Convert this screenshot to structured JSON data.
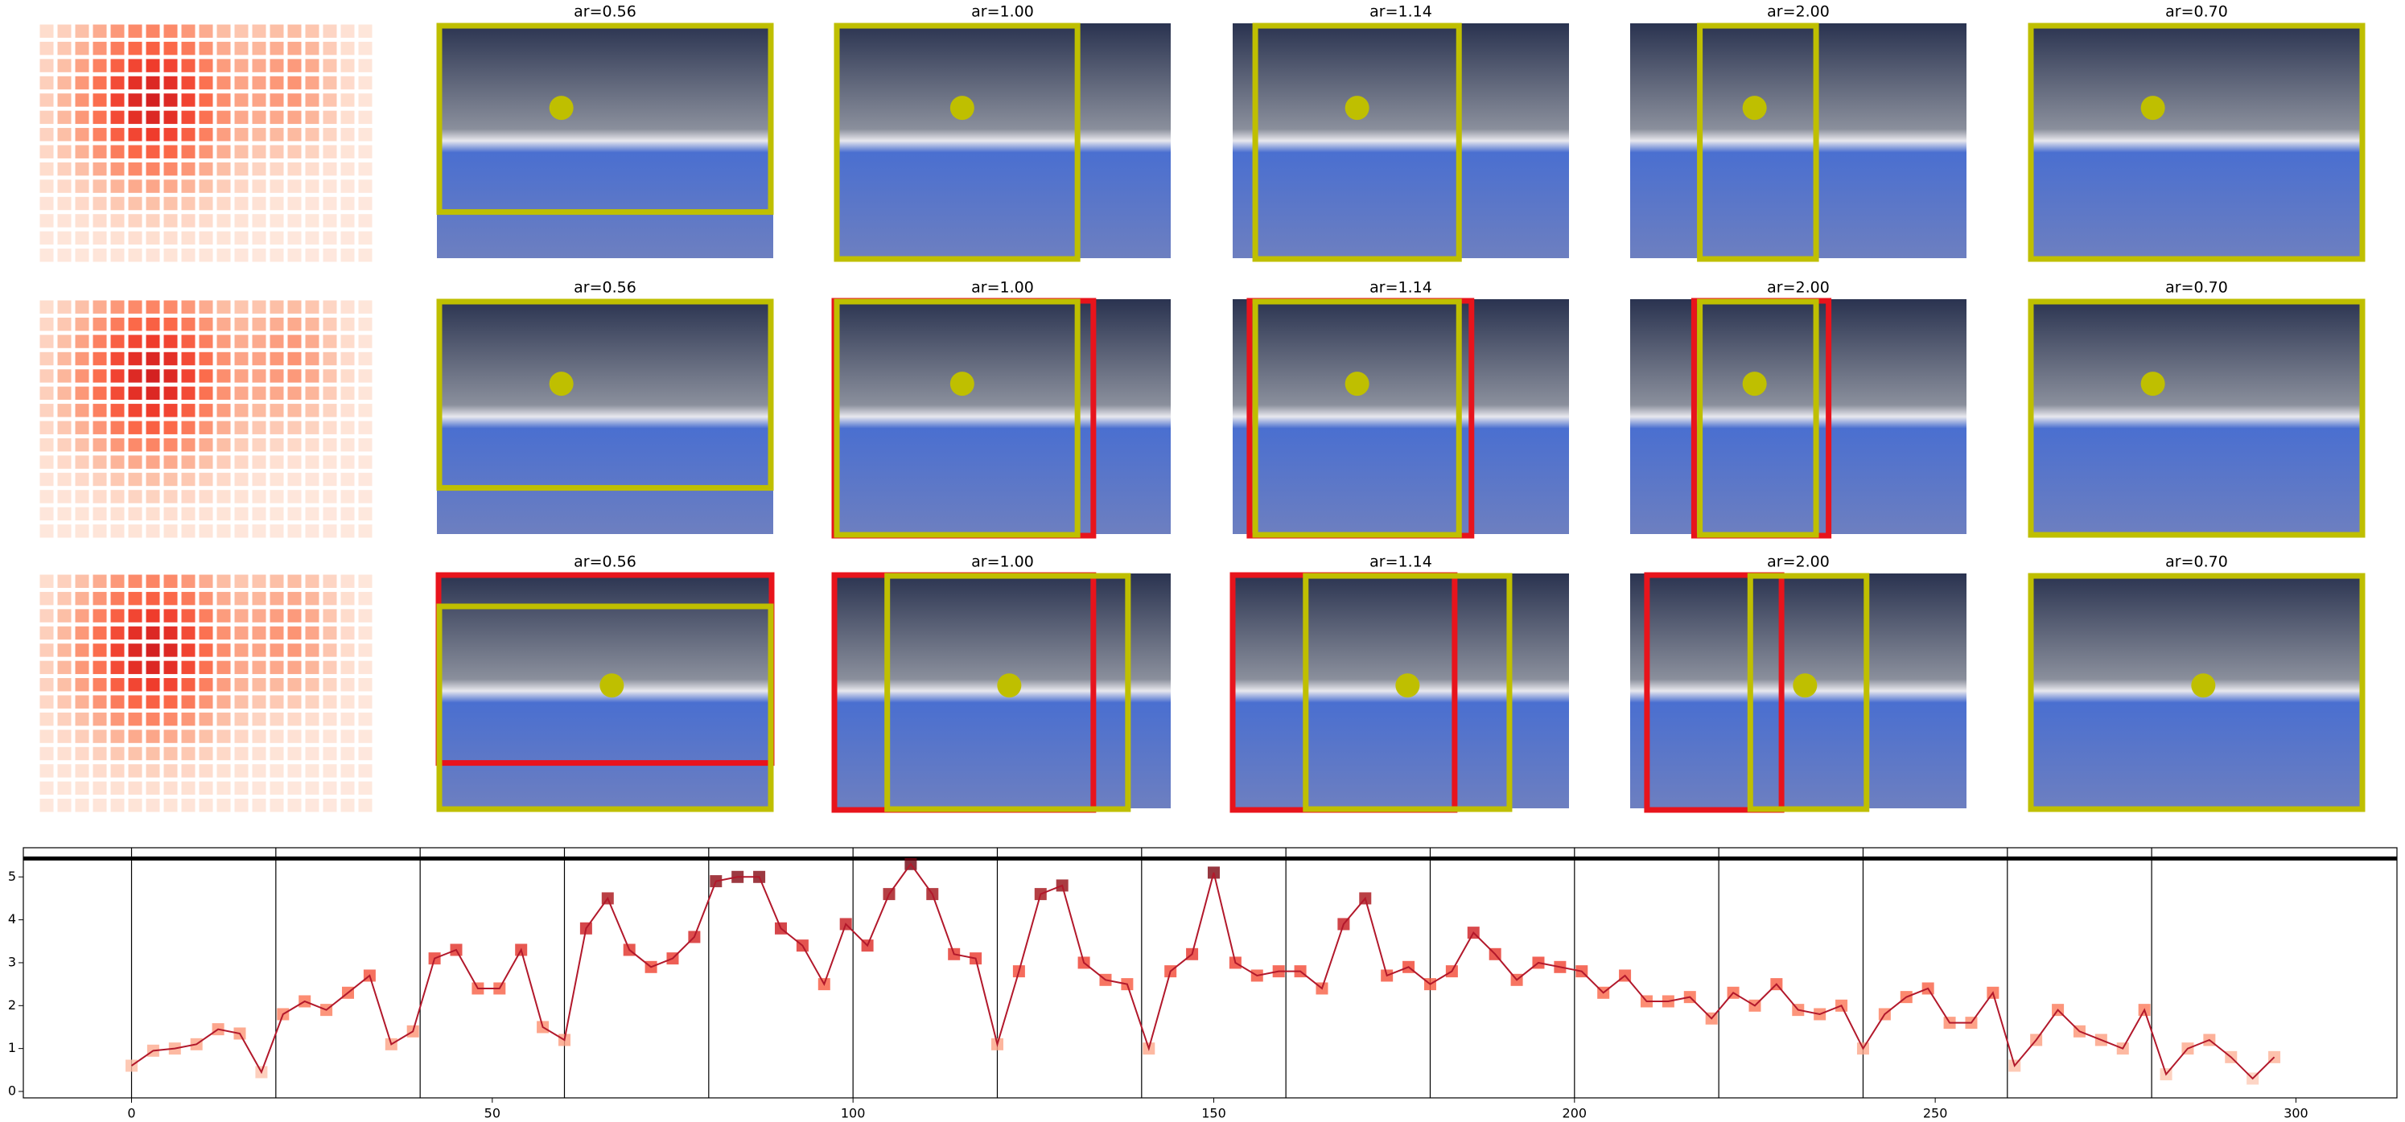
{
  "panels": {
    "titles": [
      [
        "ar=0.56",
        "ar=1.00",
        "ar=1.14",
        "ar=2.00",
        "ar=0.70"
      ],
      [
        "ar=0.56",
        "ar=1.00",
        "ar=1.14",
        "ar=2.00",
        "ar=0.70"
      ],
      [
        "ar=0.56",
        "ar=1.00",
        "ar=1.14",
        "ar=2.00",
        "ar=0.70"
      ]
    ]
  },
  "chart_data": {
    "type": "line",
    "x": [
      0,
      3,
      6,
      9,
      12,
      15,
      18,
      21,
      24,
      27,
      30,
      33,
      36,
      39,
      42,
      45,
      48,
      51,
      54,
      57,
      60,
      63,
      66,
      69,
      72,
      75,
      78,
      81,
      84,
      87,
      90,
      93,
      96,
      99,
      102,
      105,
      108,
      111,
      114,
      117,
      120,
      123,
      126,
      129,
      132,
      135,
      138,
      141,
      144,
      147,
      150,
      153,
      156,
      159,
      162,
      165,
      168,
      171,
      174,
      177,
      180,
      183,
      186,
      189,
      192,
      195,
      198,
      201,
      204,
      207,
      210,
      213,
      216,
      219,
      222,
      225,
      228,
      231,
      234,
      237,
      240,
      243,
      246,
      249,
      252,
      255,
      258,
      261,
      264,
      267,
      270,
      273,
      276,
      279,
      282,
      285,
      288,
      291,
      294,
      297
    ],
    "values": [
      0.6,
      0.95,
      1.0,
      1.1,
      1.45,
      1.35,
      0.45,
      1.8,
      2.1,
      1.9,
      2.3,
      2.7,
      1.1,
      1.4,
      3.1,
      3.3,
      2.4,
      2.4,
      3.3,
      1.5,
      1.2,
      3.8,
      4.5,
      3.3,
      2.9,
      3.1,
      3.6,
      4.9,
      5.0,
      5.0,
      3.8,
      3.4,
      2.5,
      3.9,
      3.4,
      4.6,
      5.3,
      4.6,
      3.2,
      3.1,
      1.1,
      2.8,
      4.6,
      4.8,
      3.0,
      2.6,
      2.5,
      1.0,
      2.8,
      3.2,
      5.1,
      3.0,
      2.7,
      2.8,
      2.8,
      2.4,
      3.9,
      4.5,
      2.7,
      2.9,
      2.5,
      2.8,
      3.7,
      3.2,
      2.6,
      3.0,
      2.9,
      2.8,
      2.3,
      2.7,
      2.1,
      2.1,
      2.2,
      1.7,
      2.3,
      2.0,
      2.5,
      1.9,
      1.8,
      2.0,
      1.0,
      1.8,
      2.2,
      2.4,
      1.6,
      1.6,
      2.3,
      0.6,
      1.2,
      1.9,
      1.4,
      1.2,
      1.0,
      1.9,
      0.4,
      1.0,
      1.2,
      0.8,
      0.3,
      0.8
    ],
    "line_color": "#b2182b",
    "marker_colormap": "Reds",
    "marker": "square",
    "xlim": [
      -15,
      314
    ],
    "ylim": [
      -0.15,
      5.68
    ],
    "xticks": [
      0,
      50,
      100,
      150,
      200,
      250,
      300
    ],
    "yticks": [
      0,
      1,
      2,
      3,
      4,
      5
    ],
    "vlines": [
      0,
      20,
      40,
      60,
      80,
      100,
      120,
      140,
      160,
      180,
      200,
      220,
      240,
      260,
      280
    ],
    "hline": 5.43
  }
}
